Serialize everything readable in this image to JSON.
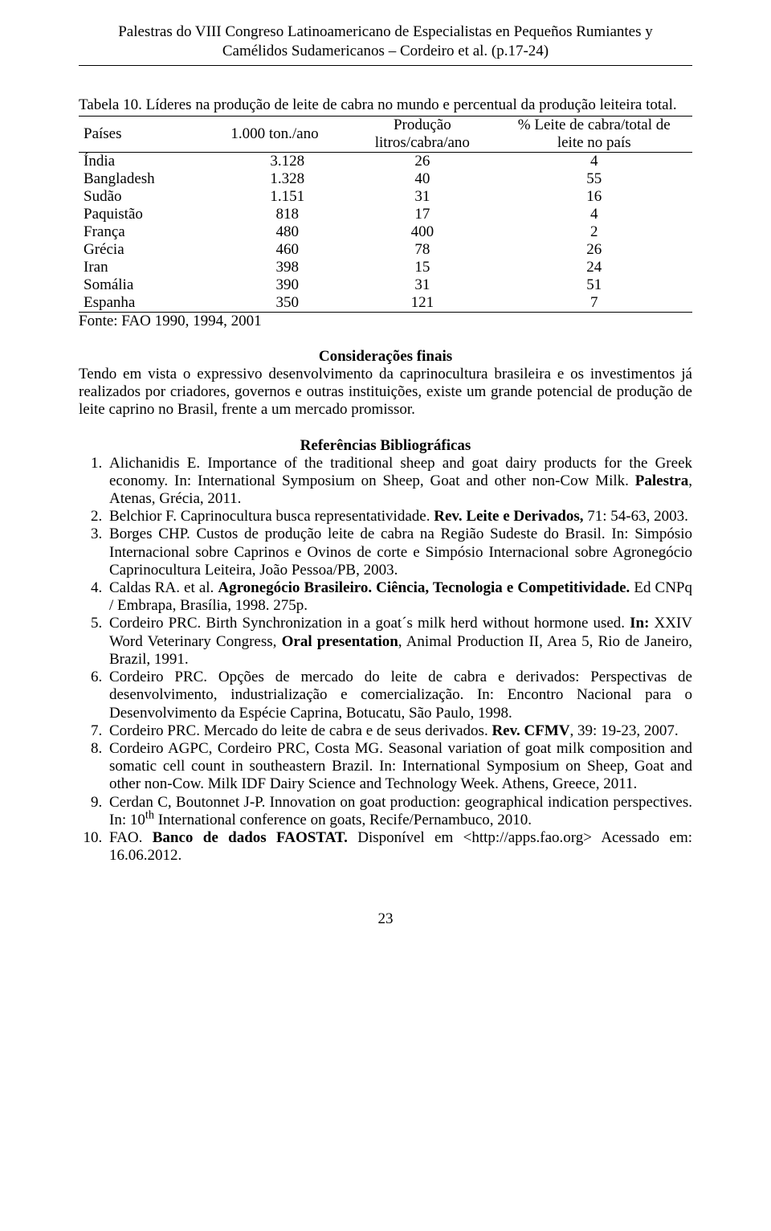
{
  "header": {
    "line1": "Palestras do VIII Congreso Latinoamericano de Especialistas en Pequeños Rumiantes y",
    "line2": "Camélidos Sudamericanos – Cordeiro et al. (p.17-24)"
  },
  "table": {
    "caption": "Tabela 10. Líderes na produção de leite de cabra no mundo e percentual da produção leiteira total.",
    "columns": {
      "c0": "Países",
      "c1": "1.000 ton./ano",
      "c2_l1": "Produção",
      "c2_l2": "litros/cabra/ano",
      "c3_l1": "% Leite de cabra/total de",
      "c3_l2": "leite no país"
    },
    "rows": [
      {
        "c0": "Índia",
        "c1": "3.128",
        "c2": "26",
        "c3": "4"
      },
      {
        "c0": "Bangladesh",
        "c1": "1.328",
        "c2": "40",
        "c3": "55"
      },
      {
        "c0": "Sudão",
        "c1": "1.151",
        "c2": "31",
        "c3": "16"
      },
      {
        "c0": "Paquistão",
        "c1": "818",
        "c2": "17",
        "c3": "4"
      },
      {
        "c0": "França",
        "c1": "480",
        "c2": "400",
        "c3": "2"
      },
      {
        "c0": "Grécia",
        "c1": "460",
        "c2": "78",
        "c3": "26"
      },
      {
        "c0": "Iran",
        "c1": "398",
        "c2": "15",
        "c3": "24"
      },
      {
        "c0": "Somália",
        "c1": "390",
        "c2": "31",
        "c3": "51"
      },
      {
        "c0": "Espanha",
        "c1": "350",
        "c2": "121",
        "c3": "7"
      }
    ],
    "source": "Fonte: FAO 1990, 1994, 2001"
  },
  "considerations": {
    "title": "Considerações finais",
    "text": "Tendo em vista o expressivo desenvolvimento da caprinocultura brasileira e os investimentos já realizados por criadores, governos e outras instituições, existe um grande potencial de produção de leite caprino no Brasil, frente a um mercado promissor."
  },
  "references": {
    "title": "Referências Bibliográficas",
    "items": [
      {
        "pre": "Alichanidis E. Importance of the traditional sheep and goat dairy products for the Greek economy. In: International Symposium on Sheep, Goat and other non-Cow Milk. ",
        "bold": "Palestra",
        "post": ", Atenas, Grécia, 2011."
      },
      {
        "pre": "Belchior F. Caprinocultura busca representatividade. ",
        "bold": "Rev. Leite e Derivados,",
        "post": " 71: 54-63, 2003."
      },
      {
        "pre": "Borges CHP. Custos de produção leite de cabra na Região Sudeste do Brasil. In: Simpósio Internacional sobre Caprinos e Ovinos de corte e Simpósio Internacional sobre Agronegócio Caprinocultura Leiteira, João Pessoa/PB, 2003.",
        "bold": "",
        "post": ""
      },
      {
        "pre": "Caldas RA. et al. ",
        "bold": "Agronegócio Brasileiro. Ciência, Tecnologia e Competitividade.",
        "post": " Ed CNPq / Embrapa, Brasília, 1998. 275p."
      },
      {
        "pre": "Cordeiro PRC. Birth Synchronization in a goat´s milk herd without hormone used. ",
        "bold": "In:",
        "post": " XXIV Word Veterinary Congress, ",
        "bold2": "Oral presentation",
        "post2": ", Animal Production II, Area 5, Rio de Janeiro, Brazil, 1991."
      },
      {
        "pre": "Cordeiro PRC. Opções de mercado do leite de cabra e derivados: Perspectivas de desenvolvimento, industrialização e comercialização. In: Encontro Nacional para o Desenvolvimento da Espécie Caprina, Botucatu, São Paulo, 1998.",
        "bold": "",
        "post": ""
      },
      {
        "pre": "Cordeiro PRC. Mercado do leite de cabra e de seus derivados. ",
        "bold": "Rev. CFMV",
        "post": ", 39: 19-23, 2007."
      },
      {
        "pre": "Cordeiro AGPC, Cordeiro PRC, Costa MG. Seasonal variation of goat milk composition and somatic cell count in southeastern Brazil. In: International Symposium on Sheep, Goat and other non-Cow. Milk IDF Dairy Science and Technology Week. Athens, Greece, 2011.",
        "bold": "",
        "post": ""
      },
      {
        "pre": "Cerdan C, Boutonnet J-P. Innovation on goat production: geographical indication perspectives. In: 10",
        "sup": "th",
        "post": " International conference on goats, Recife/Pernambuco, 2010."
      },
      {
        "pre": "FAO. ",
        "bold": "Banco de dados FAOSTAT.",
        "post": " Disponível em <http://apps.fao.org> Acessado em: 16.06.2012."
      }
    ]
  },
  "pageNumber": "23"
}
